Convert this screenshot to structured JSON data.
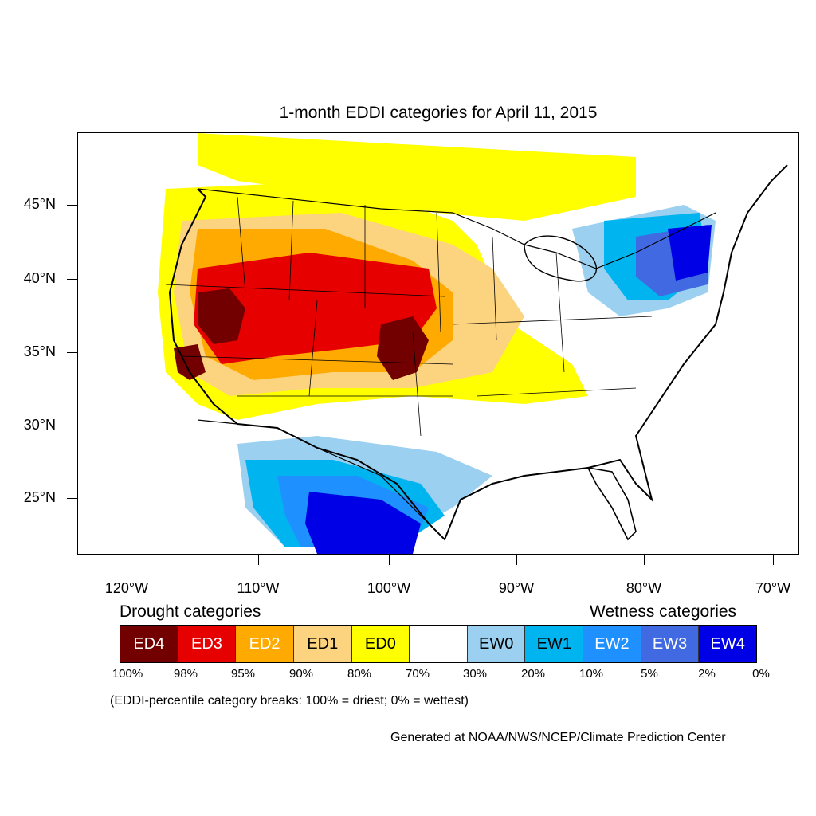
{
  "title": "1-month EDDI categories for April 11, 2015",
  "lat_labels": [
    "45°N",
    "40°N",
    "35°N",
    "30°N",
    "25°N"
  ],
  "lon_labels": [
    "120°W",
    "110°W",
    "100°W",
    "90°W",
    "80°W",
    "70°W"
  ],
  "legend": {
    "drought_title": "Drought categories",
    "wetness_title": "Wetness categories",
    "categories": [
      {
        "label": "ED4",
        "color": "#730000",
        "text_color": "#ffffff"
      },
      {
        "label": "ED3",
        "color": "#e60000",
        "text_color": "#ffffff"
      },
      {
        "label": "ED2",
        "color": "#ffaa00",
        "text_color": "#ffffff"
      },
      {
        "label": "ED1",
        "color": "#fcd37f",
        "text_color": "#000000"
      },
      {
        "label": "ED0",
        "color": "#ffff00",
        "text_color": "#000000"
      },
      {
        "label": "",
        "color": "#ffffff",
        "text_color": "#000000"
      },
      {
        "label": "EW0",
        "color": "#9bd0f0",
        "text_color": "#000000"
      },
      {
        "label": "EW1",
        "color": "#00b4f0",
        "text_color": "#000000"
      },
      {
        "label": "EW2",
        "color": "#1e90ff",
        "text_color": "#ffffff"
      },
      {
        "label": "EW3",
        "color": "#4169e1",
        "text_color": "#ffffff"
      },
      {
        "label": "EW4",
        "color": "#0000e6",
        "text_color": "#ffffff"
      }
    ],
    "percentiles": [
      "100%",
      "98%",
      "95%",
      "90%",
      "80%",
      "70%",
      "30%",
      "20%",
      "10%",
      "5%",
      "2%",
      "0%"
    ],
    "note": "(EDDI-percentile category breaks: 100% = driest; 0% = wettest)"
  },
  "credit": "Generated at NOAA/NWS/NCEP/Climate Prediction Center"
}
